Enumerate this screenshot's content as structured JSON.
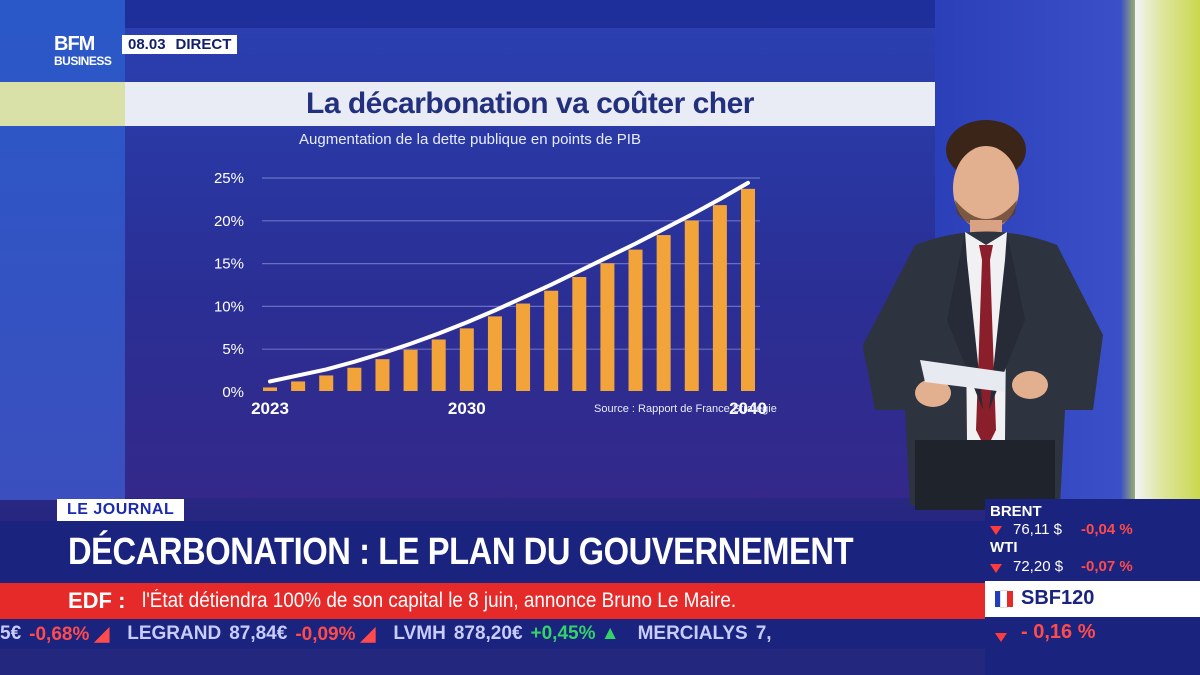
{
  "broadcast": {
    "logo_main": "BFM",
    "logo_sub": "BUSINESS",
    "time": "08.03",
    "live_label": "DIRECT"
  },
  "chart_data": {
    "type": "bar",
    "title": "La décarbonation va coûter cher",
    "subtitle": "Augmentation de la dette publique en points de PIB",
    "x_start": 2023,
    "x_end": 2040,
    "x_tick_labels": [
      "2023",
      "2030",
      "2040"
    ],
    "y_tick_labels": [
      "0%",
      "5%",
      "10%",
      "15%",
      "20%",
      "25%"
    ],
    "ylim": [
      0,
      25
    ],
    "categories": [
      2023,
      2024,
      2025,
      2026,
      2027,
      2028,
      2029,
      2030,
      2031,
      2032,
      2033,
      2034,
      2035,
      2036,
      2037,
      2038,
      2039,
      2040
    ],
    "values": [
      0.3,
      1.0,
      1.7,
      2.6,
      3.6,
      4.7,
      5.9,
      7.2,
      8.6,
      10.1,
      11.6,
      13.2,
      14.8,
      16.4,
      18.1,
      19.8,
      21.6,
      23.5
    ],
    "trend_line": true,
    "grid": true,
    "bar_color": "#f2a33a",
    "line_color": "#ffffff",
    "source": "Source : Rapport de France Stratégie"
  },
  "lower_third": {
    "tag": "LE JOURNAL",
    "headline": "DÉCARBONATION : LE PLAN DU GOUVERNEMENT",
    "flash_key": "EDF :",
    "flash_text": "l'État détiendra 100% de son capital le 8 juin, annonce Bruno Le Maire."
  },
  "ticker": [
    {
      "name": "",
      "price": "5€",
      "change": "-0,68%",
      "dir": "down"
    },
    {
      "name": "LEGRAND",
      "price": "87,84€",
      "change": "-0,09%",
      "dir": "down"
    },
    {
      "name": "LVMH",
      "price": "878,20€",
      "change": "+0,45%",
      "dir": "up"
    },
    {
      "name": "MERCIALYS",
      "price": "7,",
      "change": "",
      "dir": "down"
    }
  ],
  "markets": {
    "brent": {
      "name": "BRENT",
      "value": "76,11 $",
      "change": "-0,04 %"
    },
    "wti": {
      "name": "WTI",
      "value": "72,20 $",
      "change": "-0,07 %"
    },
    "index": {
      "name": "SBF120",
      "change": "- 0,16 %"
    }
  },
  "colors": {
    "navy": "#1a237e",
    "red": "#e62a2a",
    "orange": "#f2a33a"
  }
}
